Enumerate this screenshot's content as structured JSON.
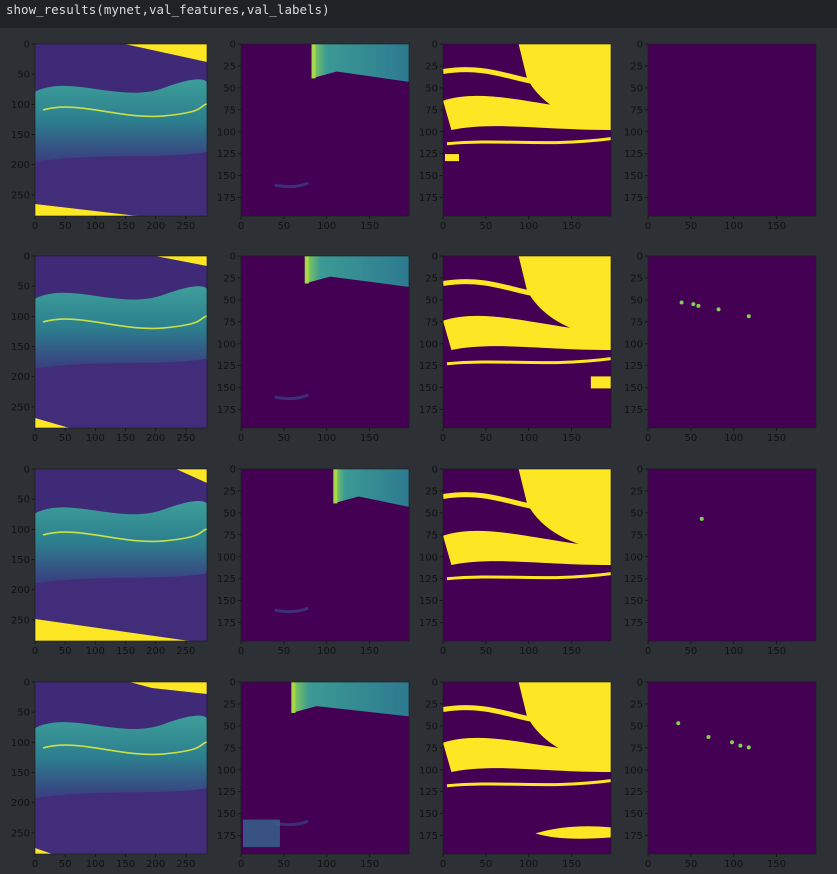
{
  "notebook": {
    "code": "show_results(mynet,val_features,val_labels)"
  },
  "figure": {
    "colors": {
      "background": "#2d3135",
      "viridis_dark": "#440154",
      "viridis_mid": "#31688e",
      "viridis_teal": "#2a9d8f",
      "viridis_yellow": "#fde725",
      "tick_text": "#111111"
    },
    "columns": [
      {
        "name": "input-image",
        "xticks": [
          "0",
          "50",
          "100",
          "150",
          "200",
          "250"
        ],
        "yticks": [
          "0",
          "50",
          "100",
          "150",
          "200",
          "250"
        ],
        "xlim": [
          0,
          285
        ],
        "ylim": [
          285,
          0
        ]
      },
      {
        "name": "class-map-1",
        "xticks": [
          "0",
          "50",
          "100",
          "150"
        ],
        "yticks": [
          "0",
          "25",
          "50",
          "75",
          "100",
          "125",
          "150",
          "175"
        ],
        "xlim": [
          0,
          196
        ],
        "ylim": [
          196,
          0
        ]
      },
      {
        "name": "class-map-2",
        "xticks": [
          "0",
          "50",
          "100",
          "150"
        ],
        "yticks": [
          "0",
          "25",
          "50",
          "75",
          "100",
          "125",
          "150",
          "175"
        ],
        "xlim": [
          0,
          196
        ],
        "ylim": [
          196,
          0
        ]
      },
      {
        "name": "class-map-3",
        "xticks": [
          "0",
          "50",
          "100",
          "150"
        ],
        "yticks": [
          "0",
          "25",
          "50",
          "75",
          "100",
          "125",
          "150",
          "175"
        ],
        "xlim": [
          0,
          196
        ],
        "ylim": [
          196,
          0
        ]
      }
    ],
    "rows": 4
  }
}
